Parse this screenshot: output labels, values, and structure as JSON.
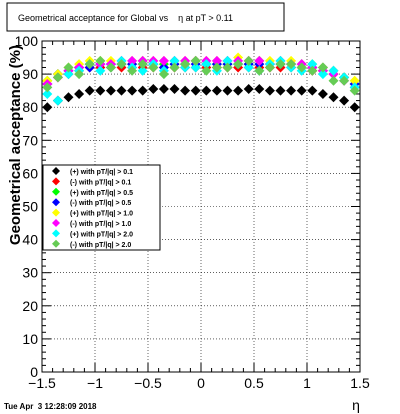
{
  "title": "Geometrical acceptance for Global vs    η at pT > 0.11",
  "footer_date": "Tue Apr  3 12:28:09 2018",
  "chart_data": {
    "type": "scatter",
    "title": "Geometrical acceptance for Global vs    η at pT > 0.11",
    "xlabel": "η",
    "ylabel": "Geometrical acceptance (%)",
    "xlim": [
      -1.5,
      1.5
    ],
    "ylim": [
      0,
      100
    ],
    "x_ticks": [
      -1.5,
      -1,
      -0.5,
      0,
      0.5,
      1,
      1.5
    ],
    "x_tick_labels": [
      "−1.5",
      "−1",
      "−0.5",
      "0",
      "0.5",
      "1",
      "1.5"
    ],
    "y_ticks": [
      0,
      10,
      20,
      30,
      40,
      50,
      60,
      70,
      80,
      90,
      100
    ],
    "y_tick_labels": [
      "0",
      "10",
      "20",
      "30",
      "40",
      "50",
      "60",
      "70",
      "80",
      "90",
      "100"
    ],
    "grid": true,
    "legend_position": "middle-left",
    "x": [
      -1.45,
      -1.35,
      -1.25,
      -1.15,
      -1.05,
      -0.95,
      -0.85,
      -0.75,
      -0.65,
      -0.55,
      -0.45,
      -0.35,
      -0.25,
      -0.15,
      -0.05,
      0.05,
      0.15,
      0.25,
      0.35,
      0.45,
      0.55,
      0.65,
      0.75,
      0.85,
      0.95,
      1.05,
      1.15,
      1.25,
      1.35,
      1.45
    ],
    "series": [
      {
        "name": "(+) with pT/|q| > 0.1",
        "color": "#000000",
        "marker": "diamond",
        "values": [
          80,
          82,
          83,
          84,
          85,
          85,
          85,
          85,
          85,
          85,
          85.5,
          85.5,
          85.5,
          85,
          85,
          85,
          85,
          85,
          85,
          85.5,
          85.5,
          85,
          85,
          85,
          85,
          85,
          84,
          83,
          82,
          80
        ]
      },
      {
        "name": "(-) with pT/|q| > 0.1",
        "color": "#ff0000",
        "marker": "diamond",
        "values": [
          87,
          89,
          90,
          91,
          92,
          92,
          92,
          92,
          92,
          92,
          92,
          92,
          92,
          92,
          92,
          92,
          92,
          92,
          92,
          92,
          92,
          92,
          92,
          92,
          92,
          91,
          91,
          90,
          89,
          87
        ]
      },
      {
        "name": "(+) with pT/|q| > 0.5",
        "color": "#00ff00",
        "marker": "diamond",
        "values": [
          88,
          90,
          91,
          92,
          93,
          93,
          93,
          93,
          93,
          94,
          93,
          93,
          93,
          93,
          94,
          93,
          93,
          93,
          93,
          93,
          94,
          93,
          93,
          93,
          92,
          92,
          91,
          90,
          89,
          87
        ]
      },
      {
        "name": "(-) with pT/|q| > 0.5",
        "color": "#0000ff",
        "marker": "diamond",
        "values": [
          87,
          90,
          91,
          92,
          92,
          93,
          93,
          93,
          93,
          93,
          93,
          92,
          93,
          93,
          93,
          93,
          93,
          93,
          93,
          93,
          93,
          93,
          93,
          93,
          93,
          92,
          92,
          91,
          89,
          87
        ]
      },
      {
        "name": "(+) with pT/|q| > 1.0",
        "color": "#ffff00",
        "marker": "diamond",
        "values": [
          88,
          90,
          92,
          93,
          94,
          94,
          94,
          94,
          94,
          94,
          94,
          94,
          94,
          94,
          94,
          94,
          94,
          94,
          95,
          94,
          94,
          94,
          94,
          94,
          93,
          93,
          92,
          91,
          89,
          88
        ]
      },
      {
        "name": "(-) with pT/|q| > 1.0",
        "color": "#ff00ff",
        "marker": "diamond",
        "values": [
          87,
          89,
          91,
          92,
          93,
          93,
          93,
          94,
          94,
          94,
          94,
          94,
          94,
          94,
          94,
          94,
          94,
          94,
          94,
          94,
          94,
          93,
          94,
          93,
          93,
          92,
          91,
          90,
          88,
          86
        ]
      },
      {
        "name": "(+) with pT/|q| > 2.0",
        "color": "#00ffff",
        "marker": "diamond",
        "values": [
          84,
          82,
          90,
          91,
          93,
          91,
          92,
          94,
          92,
          91,
          93,
          91,
          94,
          92,
          92,
          93,
          91,
          94,
          93,
          92,
          91,
          93,
          94,
          92,
          91,
          93,
          90,
          91,
          89,
          86
        ]
      },
      {
        "name": "(-) with pT/|q| > 2.0",
        "color": "#66cc55",
        "marker": "diamond",
        "values": [
          86,
          89,
          92,
          90,
          93,
          94,
          92,
          93,
          91,
          93,
          92,
          90,
          92,
          93,
          94,
          91,
          92,
          92,
          93,
          94,
          91,
          92,
          93,
          93,
          92,
          91,
          92,
          88,
          88,
          85
        ]
      }
    ]
  }
}
